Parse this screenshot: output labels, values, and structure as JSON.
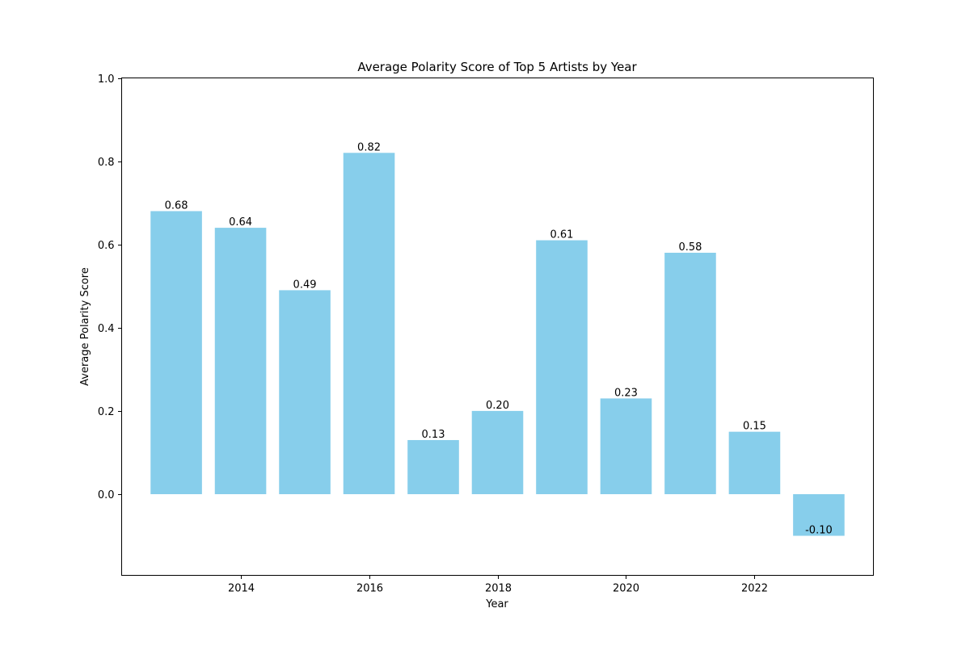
{
  "chart_data": {
    "type": "bar",
    "title": "Average Polarity Score of Top 5 Artists by Year",
    "xlabel": "Year",
    "ylabel": "Average Polarity Score",
    "x": [
      2013,
      2014,
      2015,
      2016,
      2017,
      2018,
      2019,
      2020,
      2021,
      2022,
      2023
    ],
    "values": [
      0.68,
      0.64,
      0.49,
      0.82,
      0.13,
      0.2,
      0.61,
      0.23,
      0.58,
      0.15,
      -0.1
    ],
    "value_labels": [
      "0.68",
      "0.64",
      "0.49",
      "0.82",
      "0.13",
      "0.20",
      "0.61",
      "0.23",
      "0.58",
      "0.15",
      "-0.10"
    ],
    "xlim": [
      2012.15,
      2023.85
    ],
    "ylim": [
      -0.195,
      1.0
    ],
    "xticks": [
      2014,
      2016,
      2018,
      2020,
      2022
    ],
    "xtick_labels": [
      "2014",
      "2016",
      "2018",
      "2020",
      "2022"
    ],
    "yticks": [
      0.0,
      0.2,
      0.4,
      0.6,
      0.8,
      1.0
    ],
    "ytick_labels": [
      "0.0",
      "0.2",
      "0.4",
      "0.6",
      "0.8",
      "1.0"
    ],
    "bar_color": "#87CEEB",
    "grid": false,
    "legend": "none"
  }
}
